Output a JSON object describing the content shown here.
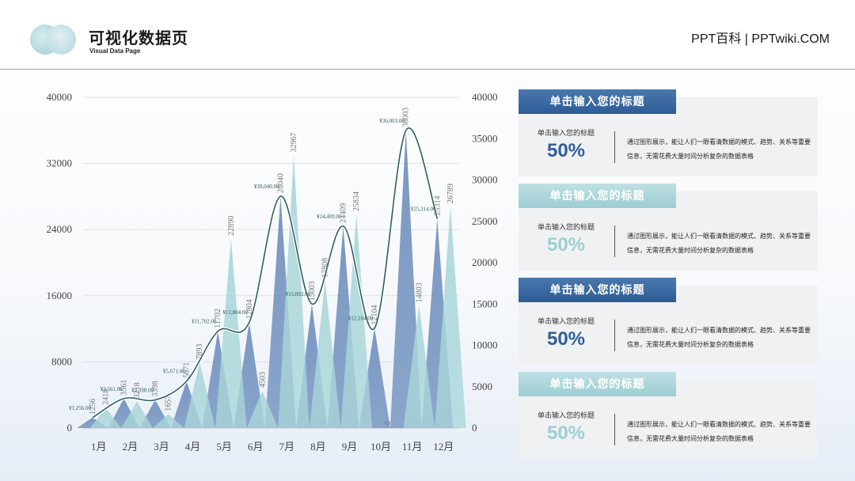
{
  "header": {
    "title": "可视化数据页",
    "subtitle": "Visual Data Page",
    "brand": "PPT百科 | PPTwiki.COM"
  },
  "colors": {
    "bar_dark": "#6f8fbd",
    "bar_light": "#a9d6d9",
    "line": "#2f5d5f",
    "accent_dark": "#2f5f97",
    "accent_light": "#9ccfd3"
  },
  "chart_data": {
    "type": "bar",
    "categories": [
      "1月",
      "2月",
      "3月",
      "4月",
      "5月",
      "6月",
      "7月",
      "8月",
      "9月",
      "10月",
      "11月",
      "12月"
    ],
    "series": [
      {
        "values": [
          1256,
          3561,
          3398,
          5671,
          11702,
          12804,
          28040,
          15003,
          24409,
          12104,
          36003,
          25314
        ]
      },
      {
        "values": [
          2418,
          3218,
          1657,
          7893,
          22890,
          4503,
          32967,
          17808,
          25834,
          0,
          14803,
          26789
        ]
      },
      {
        "values": [
          1256,
          3561,
          3398,
          5671,
          11702,
          12804,
          28040,
          15003,
          24409,
          12104,
          36003,
          25314
        ]
      }
    ],
    "bar_labels": [
      [
        "1256",
        "3561",
        "3398",
        "5671",
        "11702",
        "12804",
        "28040",
        "15003",
        "24409",
        "12104",
        "36003",
        "25314"
      ],
      [
        "2418",
        "3218",
        "1657",
        "7893",
        "22890",
        "4503",
        "32967",
        "17808",
        "25834",
        "0",
        "14803",
        "26789"
      ]
    ],
    "line_labels": [
      "¥1,256.00",
      "¥3,561.00",
      "¥3,398.00",
      "¥5,671.00",
      "¥11,702.00",
      "¥12,804.00",
      "¥28,040.00",
      "¥15,003.00",
      "¥24,409.00",
      "¥12,104.00",
      "¥36,003.00",
      "¥25,314.00"
    ],
    "y_left": {
      "ticks": [
        "0",
        "8000",
        "16000",
        "24000",
        "32000",
        "40000"
      ],
      "ylim": [
        0,
        40000
      ]
    },
    "y_right": {
      "ticks": [
        "0",
        "5000",
        "10000",
        "15000",
        "20000",
        "25000",
        "30000",
        "35000",
        "40000"
      ],
      "ylim": [
        0,
        40000
      ]
    },
    "grid": true
  },
  "panels": [
    {
      "tag": "单击输入您的标题",
      "label": "单击输入您的标题",
      "value": "50%",
      "desc": "通过图形展示，能让人们一眼看清数据的模式、趋势、关系等重要信息，无需花费大量时间分析复杂的数据表格",
      "style": "dark"
    },
    {
      "tag": "单击输入您的标题",
      "label": "单击输入您的标题",
      "value": "50%",
      "desc": "通过图形展示，能让人们一眼看清数据的模式、趋势、关系等重要信息，无需花费大量时间分析复杂的数据表格",
      "style": "light"
    },
    {
      "tag": "单击输入您的标题",
      "label": "单击输入您的标题",
      "value": "50%",
      "desc": "通过图形展示，能让人们一眼看清数据的模式、趋势、关系等重要信息，无需花费大量时间分析复杂的数据表格",
      "style": "dark"
    },
    {
      "tag": "单击输入您的标题",
      "label": "单击输入您的标题",
      "value": "50%",
      "desc": "通过图形展示，能让人们一眼看清数据的模式、趋势、关系等重要信息，无需花费大量时间分析复杂的数据表格",
      "style": "light"
    }
  ]
}
